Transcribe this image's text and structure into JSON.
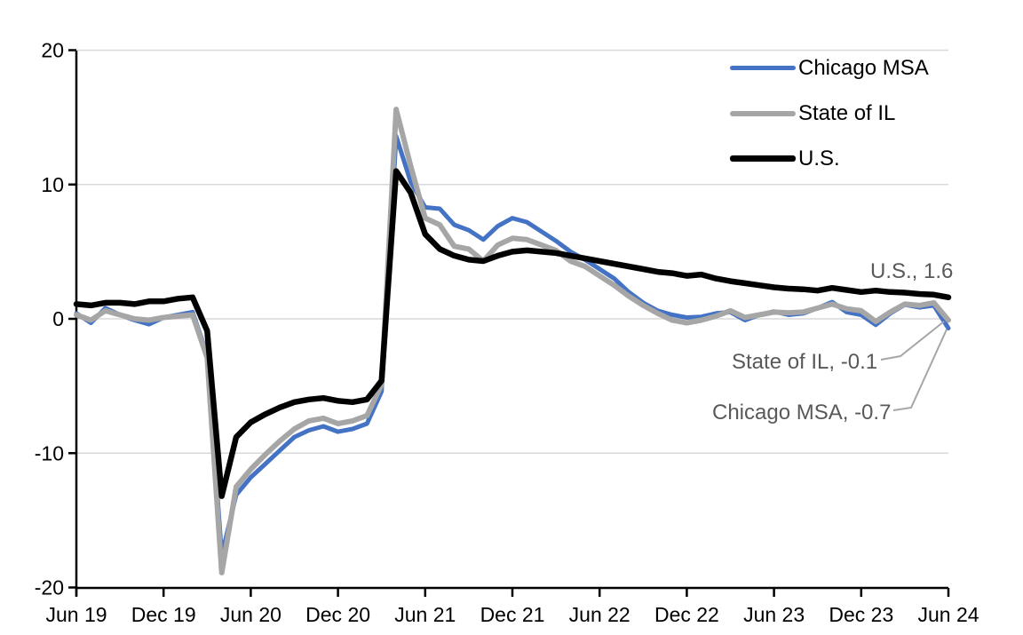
{
  "chart_data": {
    "type": "line",
    "title": "",
    "x_interval": "monthly",
    "x_tick_labels": [
      "Jun 19",
      "Dec 19",
      "Jun 20",
      "Dec 20",
      "Jun 21",
      "Dec 21",
      "Jun 22",
      "Dec 22",
      "Jun 23",
      "Dec 23",
      "Jun 24"
    ],
    "ylim": [
      -20,
      20
    ],
    "yticks": [
      20,
      10,
      0,
      -10,
      -20
    ],
    "grid": "horizontal",
    "legend_position": "top-right",
    "series": [
      {
        "name": "Chicago MSA",
        "color": "#4472C4",
        "values": [
          0.4,
          -0.3,
          0.8,
          0.3,
          -0.1,
          -0.4,
          0.1,
          0.3,
          0.5,
          -2.7,
          -17.6,
          -13.1,
          -11.8,
          -10.8,
          -9.8,
          -8.8,
          -8.3,
          -8.0,
          -8.4,
          -8.2,
          -7.8,
          -5.4,
          13.6,
          10.2,
          8.3,
          8.2,
          7.0,
          6.6,
          5.9,
          6.9,
          7.5,
          7.2,
          6.5,
          5.8,
          5.0,
          4.4,
          3.7,
          3.0,
          2.0,
          1.2,
          0.6,
          0.3,
          0.1,
          0.15,
          0.4,
          0.5,
          -0.1,
          0.3,
          0.55,
          0.3,
          0.4,
          0.8,
          1.25,
          0.5,
          0.3,
          -0.45,
          0.4,
          1.05,
          0.85,
          1.0,
          -0.7
        ]
      },
      {
        "name": "State of IL",
        "color": "#A6A6A6",
        "values": [
          0.3,
          -0.1,
          0.6,
          0.3,
          0.0,
          -0.1,
          0.1,
          0.2,
          0.3,
          -2.9,
          -18.9,
          -12.5,
          -11.2,
          -10.1,
          -9.1,
          -8.2,
          -7.6,
          -7.4,
          -7.8,
          -7.6,
          -7.2,
          -4.9,
          15.6,
          11.4,
          7.5,
          7.0,
          5.4,
          5.2,
          4.3,
          5.5,
          6.0,
          5.9,
          5.5,
          5.1,
          4.3,
          3.9,
          3.2,
          2.5,
          1.7,
          1.0,
          0.4,
          -0.1,
          -0.3,
          -0.1,
          0.2,
          0.6,
          0.1,
          0.3,
          0.5,
          0.45,
          0.5,
          0.8,
          1.1,
          0.75,
          0.6,
          -0.2,
          0.5,
          1.1,
          1.0,
          1.2,
          -0.1
        ]
      },
      {
        "name": "U.S.",
        "color": "#000000",
        "values": [
          1.1,
          1.0,
          1.2,
          1.2,
          1.1,
          1.3,
          1.3,
          1.5,
          1.6,
          -0.9,
          -13.2,
          -8.8,
          -7.7,
          -7.1,
          -6.6,
          -6.2,
          -6.0,
          -5.9,
          -6.1,
          -6.2,
          -6.0,
          -4.6,
          11.0,
          9.4,
          6.3,
          5.2,
          4.7,
          4.4,
          4.3,
          4.7,
          5.0,
          5.1,
          5.0,
          4.9,
          4.7,
          4.5,
          4.3,
          4.1,
          3.9,
          3.7,
          3.5,
          3.4,
          3.2,
          3.3,
          3.0,
          2.8,
          2.65,
          2.5,
          2.35,
          2.25,
          2.2,
          2.1,
          2.3,
          2.15,
          2.0,
          2.1,
          2.0,
          1.95,
          1.85,
          1.8,
          1.6
        ]
      }
    ],
    "annotations": [
      {
        "text": "U.S., 1.6",
        "series": "U.S.",
        "value": 1.6
      },
      {
        "text": "State of IL, -0.1",
        "series": "State of IL",
        "value": -0.1
      },
      {
        "text": "Chicago MSA, -0.7",
        "series": "Chicago MSA",
        "value": -0.7
      }
    ],
    "colors": {
      "gridline": "#D9D9D9",
      "axis": "#000000",
      "tick_text": "#000000",
      "annotation_text": "#595959",
      "leader_line": "#A6A6A6"
    }
  }
}
